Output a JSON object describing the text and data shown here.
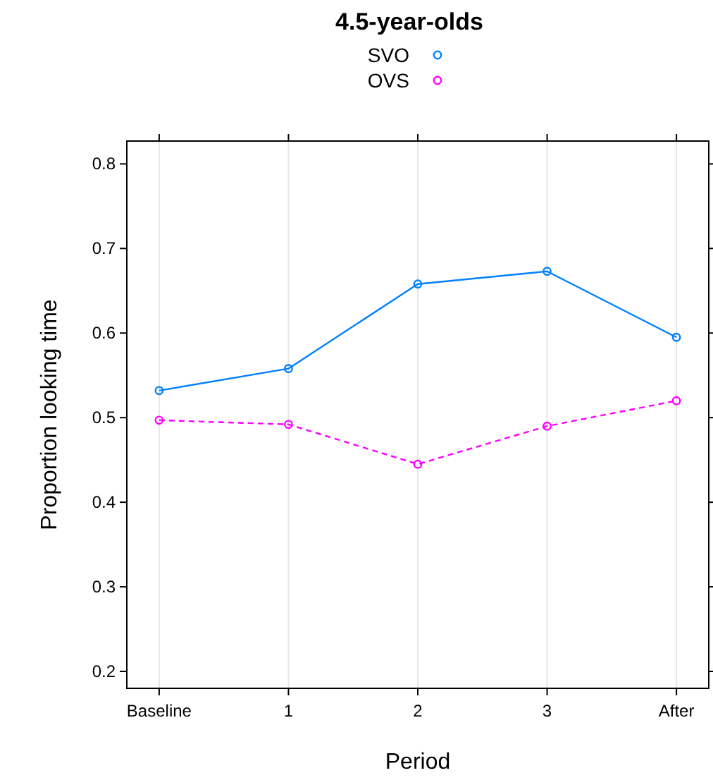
{
  "chart_data": {
    "type": "line",
    "title": "4.5-year-olds",
    "xlabel": "Period",
    "ylabel": "Proportion looking time",
    "categories": [
      "Baseline",
      "1",
      "2",
      "3",
      "After"
    ],
    "series": [
      {
        "name": "SVO",
        "color": "#0080ff",
        "values": [
          0.532,
          0.558,
          0.658,
          0.673,
          0.595
        ],
        "line_style": "solid"
      },
      {
        "name": "OVS",
        "color": "#ff00ff",
        "values": [
          0.497,
          0.492,
          0.445,
          0.49,
          0.52
        ],
        "line_style": "dashed"
      }
    ],
    "ylim": [
      0.18,
      0.827
    ],
    "yticks": [
      0.2,
      0.3,
      0.4,
      0.5,
      0.6,
      0.7,
      0.8
    ],
    "grid": "x",
    "legend": "top",
    "marker": "circle"
  }
}
